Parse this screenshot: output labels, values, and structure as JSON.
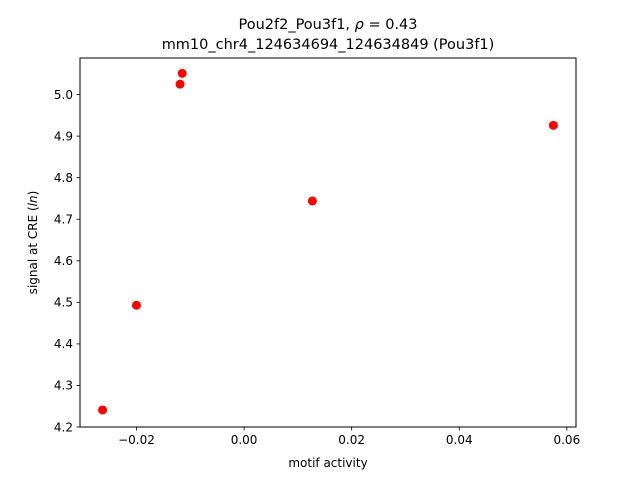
{
  "chart_data": {
    "type": "scatter",
    "title_line1_prefix": "Pou2f2_Pou3f1, ",
    "title_line1_symbol": "ρ",
    "title_line1_suffix": " = 0.43",
    "title_line2": "mm10_chr4_124634694_124634849 (Pou3f1)",
    "xlabel": "motif activity",
    "ylabel_prefix": "signal at CRE (",
    "ylabel_italic": "ln",
    "ylabel_suffix": ")",
    "xlim": [
      -0.0305,
      0.0617
    ],
    "ylim": [
      4.2,
      5.088
    ],
    "xticks": [
      -0.02,
      0.0,
      0.02,
      0.04,
      0.06
    ],
    "xtick_labels": [
      "−0.02",
      "0.00",
      "0.02",
      "0.04",
      "0.06"
    ],
    "yticks": [
      4.2,
      4.3,
      4.4,
      4.5,
      4.6,
      4.7,
      4.8,
      4.9,
      5.0
    ],
    "ytick_labels": [
      "4.2",
      "4.3",
      "4.4",
      "4.5",
      "4.6",
      "4.7",
      "4.8",
      "4.9",
      "5.0"
    ],
    "grid": false,
    "marker_color": "#ff0000",
    "points": [
      {
        "x": -0.0263,
        "y": 4.241
      },
      {
        "x": -0.02,
        "y": 4.493
      },
      {
        "x": -0.0119,
        "y": 5.025
      },
      {
        "x": -0.0115,
        "y": 5.051
      },
      {
        "x": 0.0127,
        "y": 4.744
      },
      {
        "x": 0.0575,
        "y": 4.926
      }
    ]
  }
}
